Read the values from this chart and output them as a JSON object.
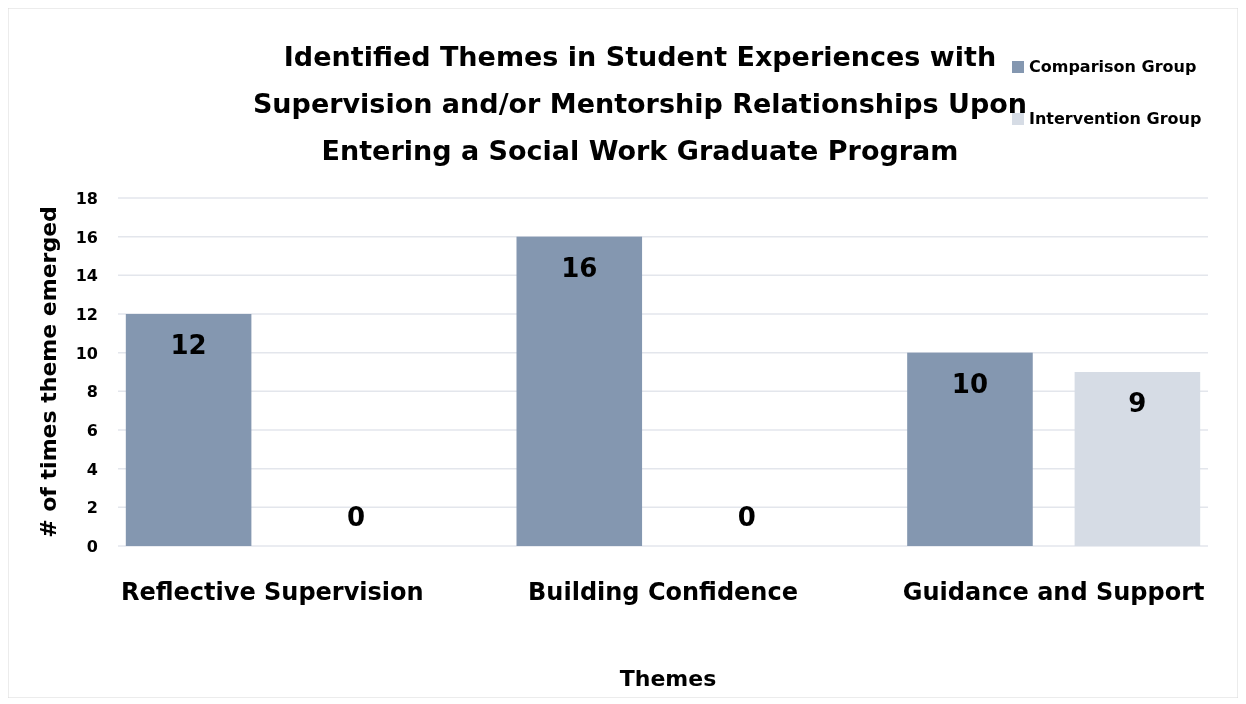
{
  "chart_data": {
    "type": "bar",
    "title": "Identified Themes in Student Experiences with Supervision and/or Mentorship Relationships Upon Entering a Social Work Graduate Program",
    "xlabel": "Themes",
    "ylabel": "# of times theme emerged",
    "categories": [
      "Reflective Supervision",
      "Building Confidence",
      "Guidance and Support"
    ],
    "series": [
      {
        "name": "Comparison Group",
        "color": "#8497b0",
        "values": [
          12,
          16,
          10
        ]
      },
      {
        "name": "Intervention Group",
        "color": "#d6dce5",
        "values": [
          0,
          0,
          9
        ]
      }
    ],
    "ylim": [
      0,
      18
    ],
    "yticks": [
      0,
      2,
      4,
      6,
      8,
      10,
      12,
      14,
      16,
      18
    ],
    "grid": "y",
    "legend": "top right",
    "data_labels": true
  }
}
